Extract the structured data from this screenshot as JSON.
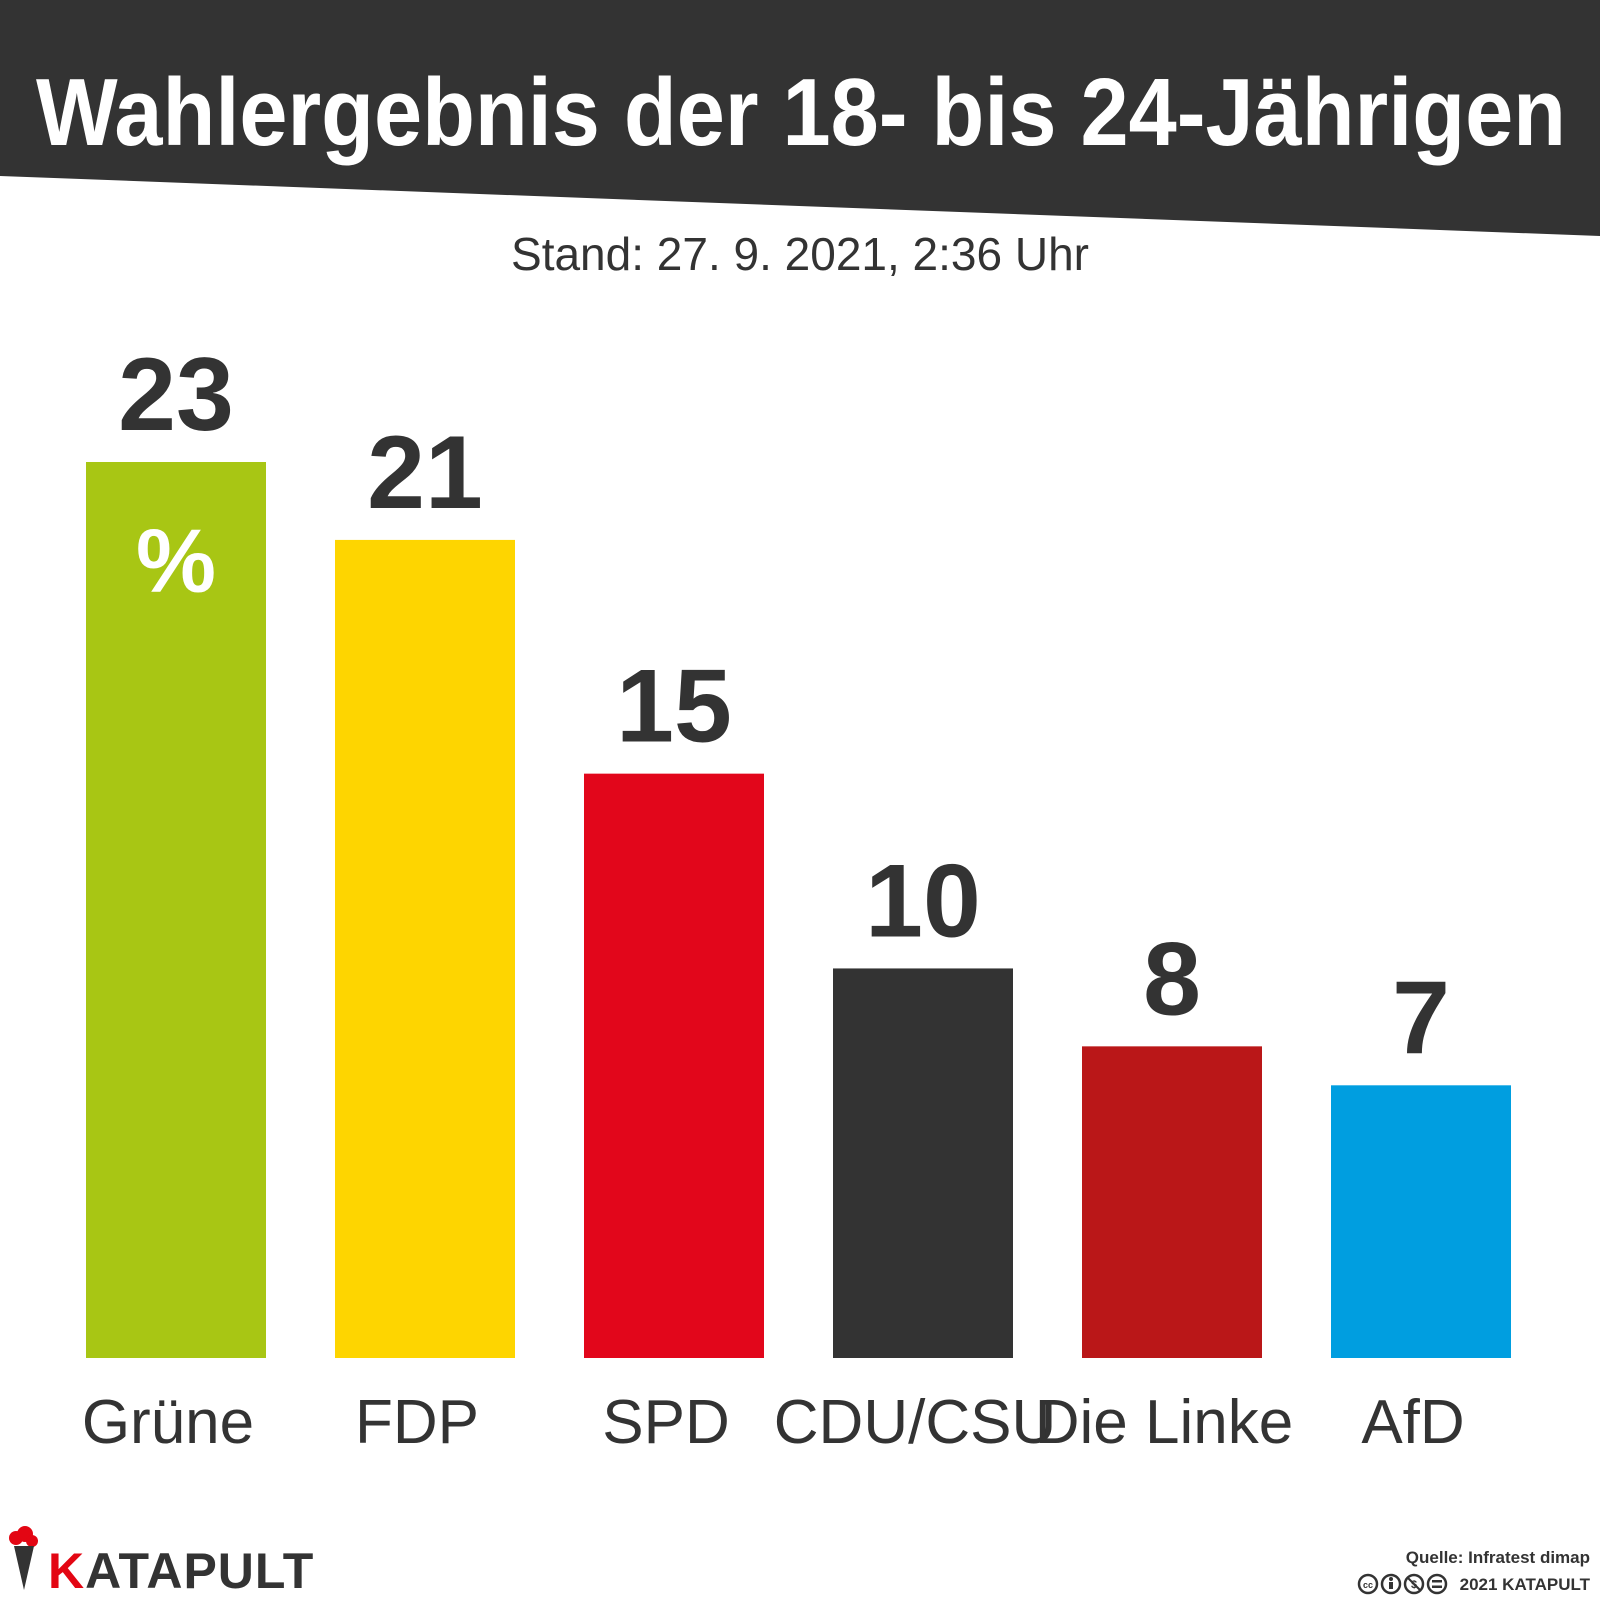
{
  "chart_data": {
    "type": "bar",
    "title": "Wahlergebnis der 18- bis 24-Jährigen",
    "subtitle": "Stand: 27. 9. 2021, 2:36 Uhr",
    "unit": "%",
    "categories": [
      "Grüne",
      "FDP",
      "SPD",
      "CDU/CSU",
      "Die Linke",
      "AfD"
    ],
    "values": [
      23,
      21,
      15,
      10,
      8,
      7
    ],
    "colors": [
      "#a8c614",
      "#fed500",
      "#e2061b",
      "#333333",
      "#ba1718",
      "#009ee0"
    ],
    "ylim": [
      0,
      23
    ],
    "grid": false,
    "legend": "none"
  },
  "branding": {
    "logo_text": "KATAPULT",
    "logo_initial": "K",
    "logo_rest": "ATAPULT",
    "logo_accent": "#e30613"
  },
  "footer": {
    "source": "Quelle: Infratest dimap",
    "copyright": "2021 KATAPULT",
    "license_icons": [
      "cc-icon",
      "by-icon",
      "nc-icon",
      "nd-icon"
    ]
  }
}
